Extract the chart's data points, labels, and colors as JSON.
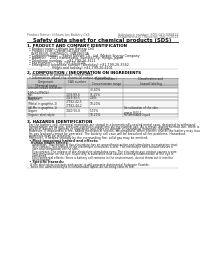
{
  "title": "Safety data sheet for chemical products (SDS)",
  "header_left": "Product Name: Lithium Ion Battery Cell",
  "header_right_l1": "Substance number: SDS-049-090819",
  "header_right_l2": "Establishment / Revision: Dec.7,2019",
  "section1_title": "1. PRODUCT AND COMPANY IDENTIFICATION",
  "section1_lines": [
    "  • Product name: Lithium Ion Battery Cell",
    "  • Product code: Cylindrical-type cell",
    "    INR18650J, INR18650L, INR18650A",
    "  • Company name:    Sanyo Electric Co., Ltd. /Mobile Energy Company",
    "  • Address:    2001 Kamitosaka, Sumoto-City, Hyogo, Japan",
    "  • Telephone number:    +81-799-26-4111",
    "  • Fax number:    +81-799-26-4120",
    "  • Emergency telephone number (Weekday) +81-799-26-3562",
    "                         (Night and holiday) +81-799-26-4101"
  ],
  "section2_title": "2. COMPOSITION / INFORMATION ON INGREDIENTS",
  "section2_intro": "  • Substance or preparation: Preparation",
  "section2_sub": "  • Information about the chemical nature of product:",
  "table_col_headers": [
    "Component",
    "CAS number",
    "Concentration /\nConcentration range",
    "Classification and\nhazard labeling"
  ],
  "table_sub_header": "Chemical name",
  "table_rows": [
    [
      "Lithium cobalt tantalate\n(LiMnCo2PbO4)",
      "",
      "30-60%",
      ""
    ],
    [
      "Iron",
      "7439-89-6",
      "15-25%",
      ""
    ],
    [
      "Aluminium",
      "7429-90-5",
      "2-8%",
      ""
    ],
    [
      "Graphite\n(Metal in graphite-1)\n(Al-Mo in graphite-1)",
      "77592-42-5\n77592-44-2",
      "10-20%",
      ""
    ],
    [
      "Copper",
      "7440-50-8",
      "5-15%",
      "Sensitization of the skin\ngroup R43.2"
    ],
    [
      "Organic electrolyte",
      "",
      "10-20%",
      "Inflammable liquid"
    ]
  ],
  "section3_title": "3. HAZARDS IDENTIFICATION",
  "section3_lines": [
    "  For the battery cell, chemical materials are stored in a hermetically sealed metal case, designed to withstand",
    "  temperature variations, pressure-corrosion conditions during normal use. As a result, during normal use, there is no",
    "  physical danger of ignition or aspiration and there no danger of hazardous materials leakage.",
    "  However, if exposed to a fire, added mechanical shocks, decomposed, when electric shock, the battery may issue.",
    "  Its gas leakage cannot be operated. The battery cell case will be breached all fire problems. Hazardous",
    "  materials may be released.",
    "  Moreover, if heated strongly by the surrounding fire, solid gas may be emitted."
  ],
  "section3_important": "  • Most important hazard and effects:",
  "section3_human": "    Human health effects:",
  "section3_human_lines": [
    "      Inhalation: The release of the electrolyte has an anaesthesia action and stimulates in respiratory tract.",
    "      Skin contact: The release of the electrolyte stimulates a skin. The electrolyte skin contact causes a",
    "      sore and stimulation on the skin.",
    "      Eye contact: The release of the electrolyte stimulates eyes. The electrolyte eye contact causes a sore",
    "      and stimulation on the eye. Especially, a substance that causes a strong inflammation of the eye is",
    "      contained.",
    "      Environmental effects: Since a battery cell remains in the environment, do not throw out it into the",
    "      environment."
  ],
  "section3_specific": "  • Specific hazards:",
  "section3_specific_lines": [
    "    If the electrolyte contacts with water, it will generate detrimental hydrogen fluoride.",
    "    Since the used electrolyte is inflammable liquid, do not bring close to fire."
  ],
  "bg_color": "#ffffff",
  "text_color": "#222222",
  "header_color": "#666666",
  "title_color": "#111111",
  "section_color": "#000000",
  "table_hdr_bg": "#cccccc",
  "table_line": "#888888",
  "divider_color": "#aaaaaa"
}
